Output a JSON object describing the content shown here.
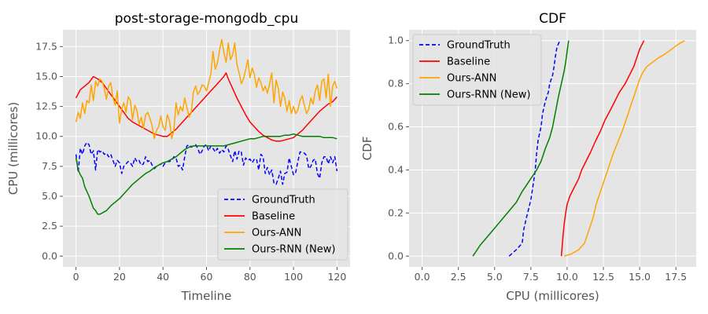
{
  "colors": {
    "groundtruth": "#0000ff",
    "baseline": "#ff0000",
    "ours_ann": "#ffa500",
    "ours_rnn": "#008000",
    "plot_bg": "#e5e5e5",
    "grid": "#ffffff",
    "tick_text": "#555555"
  },
  "chart_data": [
    {
      "type": "line",
      "title": "post-storage-mongodb_cpu",
      "xlabel": "Timeline",
      "ylabel": "CPU (millicores)",
      "xlim": [
        -6,
        126
      ],
      "ylim": [
        -0.9,
        18.9
      ],
      "xticks": [
        0,
        20,
        40,
        60,
        80,
        100,
        120
      ],
      "xtick_labels": [
        "0",
        "20",
        "40",
        "60",
        "80",
        "100",
        "120"
      ],
      "yticks": [
        0,
        2.5,
        5,
        7.5,
        10,
        12.5,
        15,
        17.5
      ],
      "ytick_labels": [
        "0.0",
        "2.5",
        "5.0",
        "7.5",
        "10.0",
        "12.5",
        "15.0",
        "17.5"
      ],
      "grid": true,
      "legend_position": "lower-right",
      "series": [
        {
          "name": "GroundTruth",
          "color_key": "groundtruth",
          "dashed": true,
          "x": [
            0,
            1,
            2,
            3,
            4,
            5,
            6,
            7,
            8,
            9,
            10,
            11,
            12,
            13,
            14,
            15,
            16,
            17,
            18,
            19,
            20,
            21,
            22,
            23,
            24,
            25,
            26,
            27,
            28,
            29,
            30,
            31,
            32,
            33,
            34,
            35,
            36,
            37,
            38,
            39,
            40,
            41,
            42,
            43,
            44,
            45,
            46,
            47,
            48,
            49,
            50,
            51,
            52,
            53,
            54,
            55,
            56,
            57,
            58,
            59,
            60,
            61,
            62,
            63,
            64,
            65,
            66,
            67,
            68,
            69,
            70,
            71,
            72,
            73,
            74,
            75,
            76,
            77,
            78,
            79,
            80,
            81,
            82,
            83,
            84,
            85,
            86,
            87,
            88,
            89,
            90,
            91,
            92,
            93,
            94,
            95,
            96,
            97,
            98,
            99,
            100,
            101,
            102,
            103,
            104,
            105,
            106,
            107,
            108,
            109,
            110,
            111,
            112,
            113,
            114,
            115,
            116,
            117,
            118,
            119,
            120
          ],
          "y": [
            8.5,
            7.0,
            9.0,
            8.5,
            9.2,
            9.5,
            9.3,
            8.5,
            8.8,
            7.2,
            8.9,
            8.7,
            8.8,
            8.5,
            8.6,
            8.3,
            8.5,
            8.0,
            7.5,
            8.0,
            7.8,
            6.9,
            7.5,
            7.7,
            7.9,
            7.8,
            7.5,
            8.2,
            7.9,
            8.0,
            7.6,
            7.7,
            8.3,
            7.9,
            8.0,
            7.6,
            7.3,
            7.5,
            7.6,
            7.7,
            7.5,
            7.8,
            7.9,
            7.9,
            8.0,
            8.3,
            8.2,
            7.5,
            7.6,
            7.2,
            8.3,
            9.2,
            9.3,
            9.1,
            9.2,
            9.3,
            9.0,
            8.5,
            8.8,
            9.2,
            9.3,
            8.8,
            9.2,
            9.0,
            8.7,
            9.0,
            8.6,
            8.9,
            8.7,
            9.2,
            8.9,
            8.4,
            7.9,
            8.8,
            8.1,
            8.8,
            8.7,
            7.6,
            8.2,
            8.0,
            8.1,
            7.8,
            8.1,
            8.1,
            7.2,
            8.5,
            8.3,
            6.9,
            7.4,
            6.8,
            7.2,
            6.1,
            6.0,
            6.5,
            7.1,
            6.0,
            6.9,
            7.0,
            8.2,
            7.5,
            6.8,
            7.0,
            7.9,
            8.7,
            8.7,
            8.6,
            8.4,
            7.3,
            7.5,
            8.0,
            8.1,
            6.9,
            6.5,
            7.8,
            8.3,
            8.3,
            7.7,
            8.3,
            7.8,
            8.3,
            7.1
          ]
        },
        {
          "name": "Baseline",
          "color_key": "baseline",
          "dashed": false,
          "x": [
            0,
            2,
            4,
            6,
            8,
            10,
            12,
            14,
            16,
            18,
            20,
            22,
            24,
            26,
            28,
            30,
            32,
            34,
            36,
            38,
            40,
            42,
            44,
            46,
            48,
            50,
            52,
            54,
            56,
            58,
            60,
            62,
            64,
            66,
            68,
            69,
            70,
            72,
            74,
            76,
            78,
            80,
            82,
            84,
            86,
            88,
            90,
            92,
            94,
            96,
            98,
            100,
            102,
            104,
            106,
            108,
            110,
            112,
            114,
            116,
            118,
            120
          ],
          "y": [
            13.2,
            13.9,
            14.2,
            14.5,
            15.0,
            14.8,
            14.5,
            14.0,
            13.5,
            13.0,
            12.5,
            12.0,
            11.5,
            11.2,
            11.0,
            10.8,
            10.6,
            10.4,
            10.2,
            10.1,
            10.0,
            10.0,
            10.3,
            10.6,
            11.0,
            11.4,
            11.8,
            12.2,
            12.6,
            13.0,
            13.4,
            13.8,
            14.2,
            14.6,
            15.0,
            15.3,
            14.8,
            14.0,
            13.2,
            12.5,
            11.8,
            11.2,
            10.8,
            10.4,
            10.1,
            9.9,
            9.7,
            9.6,
            9.6,
            9.7,
            9.8,
            9.9,
            10.2,
            10.5,
            10.9,
            11.3,
            11.7,
            12.1,
            12.4,
            12.7,
            12.9,
            13.3
          ]
        },
        {
          "name": "Ours-ANN",
          "color_key": "ours_ann",
          "dashed": false,
          "x": [
            0,
            1,
            2,
            3,
            4,
            5,
            6,
            7,
            8,
            9,
            10,
            11,
            12,
            13,
            14,
            15,
            16,
            17,
            18,
            19,
            20,
            21,
            22,
            23,
            24,
            25,
            26,
            27,
            28,
            29,
            30,
            31,
            32,
            33,
            34,
            35,
            36,
            37,
            38,
            39,
            40,
            41,
            42,
            43,
            44,
            45,
            46,
            47,
            48,
            49,
            50,
            51,
            52,
            53,
            54,
            55,
            56,
            57,
            58,
            59,
            60,
            61,
            62,
            63,
            64,
            65,
            66,
            67,
            68,
            69,
            70,
            71,
            72,
            73,
            74,
            75,
            76,
            77,
            78,
            79,
            80,
            81,
            82,
            83,
            84,
            85,
            86,
            87,
            88,
            89,
            90,
            91,
            92,
            93,
            94,
            95,
            96,
            97,
            98,
            99,
            100,
            101,
            102,
            103,
            104,
            105,
            106,
            107,
            108,
            109,
            110,
            111,
            112,
            113,
            114,
            115,
            116,
            117,
            118,
            119,
            120
          ],
          "y": [
            11.2,
            12.0,
            11.5,
            12.8,
            11.9,
            13.0,
            12.8,
            14.3,
            13.0,
            14.6,
            14.2,
            14.8,
            14.6,
            14.0,
            13.1,
            14.2,
            14.5,
            13.2,
            12.6,
            13.8,
            11.1,
            12.3,
            12.8,
            12.0,
            13.3,
            13.0,
            11.4,
            12.6,
            12.2,
            11.0,
            11.6,
            10.7,
            11.8,
            12.0,
            11.5,
            10.9,
            9.8,
            10.5,
            10.8,
            11.7,
            10.8,
            10.5,
            11.8,
            11.3,
            9.8,
            10.5,
            12.8,
            11.8,
            12.5,
            12.1,
            13.2,
            12.4,
            11.6,
            12.0,
            13.7,
            14.2,
            13.5,
            13.8,
            14.3,
            14.2,
            13.8,
            14.5,
            15.2,
            17.1,
            15.6,
            16.1,
            17.2,
            18.1,
            17.0,
            16.2,
            17.8,
            16.4,
            16.8,
            17.8,
            16.0,
            15.3,
            14.4,
            14.8,
            15.6,
            16.4,
            14.9,
            15.7,
            15.2,
            14.1,
            14.9,
            14.5,
            13.8,
            14.2,
            13.6,
            14.4,
            15.3,
            12.8,
            14.7,
            14.0,
            12.5,
            13.7,
            13.2,
            12.1,
            13.0,
            11.9,
            12.5,
            11.9,
            12.2,
            13.0,
            13.4,
            12.6,
            11.9,
            12.3,
            13.2,
            12.7,
            13.8,
            14.3,
            13.0,
            14.6,
            14.8,
            13.2,
            15.2,
            12.5,
            14.2,
            14.6,
            14.0
          ]
        },
        {
          "name": "Ours-RNN (New)",
          "color_key": "ours_rnn",
          "dashed": false,
          "x": [
            0,
            1,
            2,
            3,
            4,
            6,
            8,
            9,
            10,
            11,
            12,
            13,
            14,
            15,
            16,
            18,
            20,
            22,
            24,
            26,
            28,
            30,
            32,
            34,
            36,
            38,
            40,
            42,
            44,
            46,
            48,
            50,
            52,
            54,
            56,
            58,
            60,
            62,
            64,
            66,
            68,
            70,
            72,
            74,
            76,
            78,
            80,
            82,
            84,
            86,
            88,
            90,
            92,
            94,
            96,
            98,
            100,
            102,
            104,
            106,
            108,
            110,
            112,
            114,
            116,
            118,
            120
          ],
          "y": [
            8.2,
            7.2,
            6.8,
            6.5,
            5.8,
            5.0,
            4.0,
            3.8,
            3.5,
            3.5,
            3.6,
            3.7,
            3.8,
            4.0,
            4.2,
            4.5,
            4.8,
            5.2,
            5.6,
            6.0,
            6.3,
            6.6,
            6.9,
            7.1,
            7.4,
            7.6,
            7.8,
            7.9,
            8.1,
            8.3,
            8.6,
            8.9,
            9.1,
            9.2,
            9.2,
            9.2,
            9.2,
            9.2,
            9.2,
            9.2,
            9.2,
            9.3,
            9.4,
            9.5,
            9.6,
            9.7,
            9.8,
            9.8,
            9.9,
            10.0,
            10.0,
            10.0,
            10.0,
            10.0,
            10.1,
            10.1,
            10.2,
            10.1,
            10.0,
            10.0,
            10.0,
            10.0,
            10.0,
            9.9,
            9.9,
            9.9,
            9.8
          ]
        }
      ]
    },
    {
      "type": "line",
      "title": "CDF",
      "xlabel": "CPU (millicores)",
      "ylabel": "CDF",
      "xlim": [
        -0.9,
        18.9
      ],
      "ylim": [
        -0.05,
        1.05
      ],
      "xticks": [
        0,
        2.5,
        5,
        7.5,
        10,
        12.5,
        15,
        17.5
      ],
      "xtick_labels": [
        "0.0",
        "2.5",
        "5.0",
        "7.5",
        "10.0",
        "12.5",
        "15.0",
        "17.5"
      ],
      "yticks": [
        0,
        0.2,
        0.4,
        0.6,
        0.8,
        1.0
      ],
      "ytick_labels": [
        "0.0",
        "0.2",
        "0.4",
        "0.6",
        "0.8",
        "1.0"
      ],
      "grid": true,
      "legend_position": "upper-left",
      "series": [
        {
          "name": "GroundTruth",
          "color_key": "groundtruth",
          "dashed": true,
          "x": [
            6.0,
            6.5,
            6.9,
            7.0,
            7.2,
            7.5,
            7.7,
            7.8,
            7.9,
            8.0,
            8.2,
            8.3,
            8.5,
            8.7,
            8.8,
            9.0,
            9.1,
            9.2,
            9.3,
            9.5
          ],
          "y": [
            0.0,
            0.03,
            0.06,
            0.12,
            0.18,
            0.26,
            0.35,
            0.4,
            0.48,
            0.54,
            0.6,
            0.66,
            0.72,
            0.76,
            0.8,
            0.84,
            0.88,
            0.93,
            0.97,
            1.0
          ]
        },
        {
          "name": "Baseline",
          "color_key": "baseline",
          "dashed": false,
          "x": [
            9.6,
            9.7,
            9.8,
            9.9,
            10.0,
            10.2,
            10.5,
            10.8,
            11.0,
            11.3,
            11.6,
            12.0,
            12.3,
            12.6,
            13.0,
            13.3,
            13.6,
            14.0,
            14.3,
            14.6,
            14.8,
            15.0,
            15.3
          ],
          "y": [
            0.0,
            0.08,
            0.15,
            0.2,
            0.24,
            0.28,
            0.32,
            0.36,
            0.4,
            0.44,
            0.48,
            0.54,
            0.58,
            0.63,
            0.68,
            0.72,
            0.76,
            0.8,
            0.84,
            0.88,
            0.92,
            0.96,
            1.0
          ]
        },
        {
          "name": "Ours-ANN",
          "color_key": "ours_ann",
          "dashed": false,
          "x": [
            9.8,
            10.3,
            10.8,
            11.2,
            11.5,
            11.8,
            12.0,
            12.3,
            12.6,
            12.9,
            13.2,
            13.5,
            13.8,
            14.0,
            14.2,
            14.4,
            14.6,
            14.8,
            15.0,
            15.2,
            15.5,
            15.9,
            16.3,
            16.8,
            17.2,
            17.6,
            18.1
          ],
          "y": [
            0.0,
            0.01,
            0.03,
            0.06,
            0.12,
            0.18,
            0.24,
            0.3,
            0.36,
            0.42,
            0.48,
            0.53,
            0.58,
            0.62,
            0.66,
            0.7,
            0.74,
            0.78,
            0.82,
            0.85,
            0.88,
            0.9,
            0.92,
            0.94,
            0.96,
            0.98,
            1.0
          ]
        },
        {
          "name": "Ours-RNN (New)",
          "color_key": "ours_rnn",
          "dashed": false,
          "x": [
            3.5,
            4.0,
            4.5,
            5.0,
            5.5,
            6.0,
            6.5,
            6.9,
            7.3,
            7.6,
            7.9,
            8.2,
            8.5,
            8.8,
            9.0,
            9.2,
            9.4,
            9.6,
            9.8,
            9.9,
            10.0,
            10.1
          ],
          "y": [
            0.0,
            0.05,
            0.09,
            0.13,
            0.17,
            0.21,
            0.25,
            0.3,
            0.34,
            0.37,
            0.4,
            0.44,
            0.5,
            0.55,
            0.6,
            0.67,
            0.74,
            0.8,
            0.86,
            0.9,
            0.95,
            1.0
          ]
        }
      ]
    }
  ]
}
